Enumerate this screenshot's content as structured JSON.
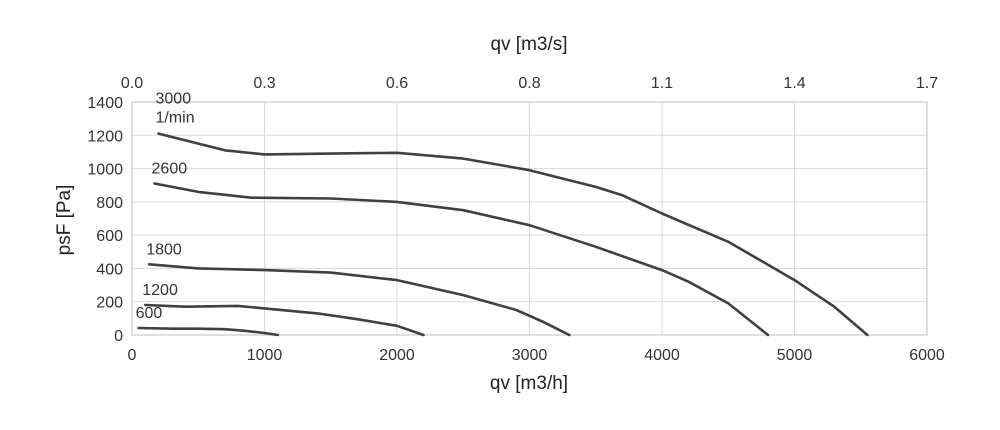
{
  "chart_data": {
    "type": "line",
    "xlabel": "qv [m3/h]",
    "x2label": "qv [m3/s]",
    "ylabel": "psF [Pa]",
    "xlim": [
      0,
      6000
    ],
    "ylim": [
      0,
      1400
    ],
    "x_ticks": [
      "0",
      "1000",
      "2000",
      "3000",
      "4000",
      "5000",
      "6000"
    ],
    "x2_ticks": [
      "0.0",
      "0.3",
      "0.6",
      "0.8",
      "1.1",
      "1.4",
      "1.7"
    ],
    "y_ticks": [
      "0",
      "200",
      "400",
      "600",
      "800",
      "1000",
      "1200",
      "1400"
    ],
    "grid": true,
    "series": [
      {
        "name": "3000",
        "unit_label": "1/min",
        "points": [
          [
            200,
            1210
          ],
          [
            700,
            1110
          ],
          [
            1000,
            1085
          ],
          [
            1500,
            1090
          ],
          [
            2000,
            1095
          ],
          [
            2500,
            1060
          ],
          [
            3000,
            990
          ],
          [
            3500,
            890
          ],
          [
            3700,
            840
          ],
          [
            4000,
            730
          ],
          [
            4500,
            560
          ],
          [
            5000,
            330
          ],
          [
            5300,
            170
          ],
          [
            5550,
            0
          ]
        ]
      },
      {
        "name": "2600",
        "points": [
          [
            170,
            910
          ],
          [
            500,
            860
          ],
          [
            900,
            825
          ],
          [
            1500,
            820
          ],
          [
            2000,
            800
          ],
          [
            2500,
            750
          ],
          [
            3000,
            660
          ],
          [
            3500,
            530
          ],
          [
            4000,
            390
          ],
          [
            4200,
            320
          ],
          [
            4500,
            190
          ],
          [
            4800,
            0
          ]
        ]
      },
      {
        "name": "1800",
        "points": [
          [
            130,
            425
          ],
          [
            500,
            400
          ],
          [
            1000,
            390
          ],
          [
            1500,
            375
          ],
          [
            2000,
            330
          ],
          [
            2500,
            240
          ],
          [
            2900,
            150
          ],
          [
            3100,
            80
          ],
          [
            3300,
            0
          ]
        ]
      },
      {
        "name": "1200",
        "points": [
          [
            100,
            180
          ],
          [
            400,
            170
          ],
          [
            800,
            175
          ],
          [
            1000,
            160
          ],
          [
            1400,
            130
          ],
          [
            1700,
            95
          ],
          [
            2000,
            55
          ],
          [
            2200,
            0
          ]
        ]
      },
      {
        "name": "600",
        "points": [
          [
            50,
            42
          ],
          [
            300,
            38
          ],
          [
            500,
            38
          ],
          [
            700,
            35
          ],
          [
            850,
            25
          ],
          [
            1000,
            12
          ],
          [
            1100,
            0
          ]
        ]
      }
    ]
  }
}
